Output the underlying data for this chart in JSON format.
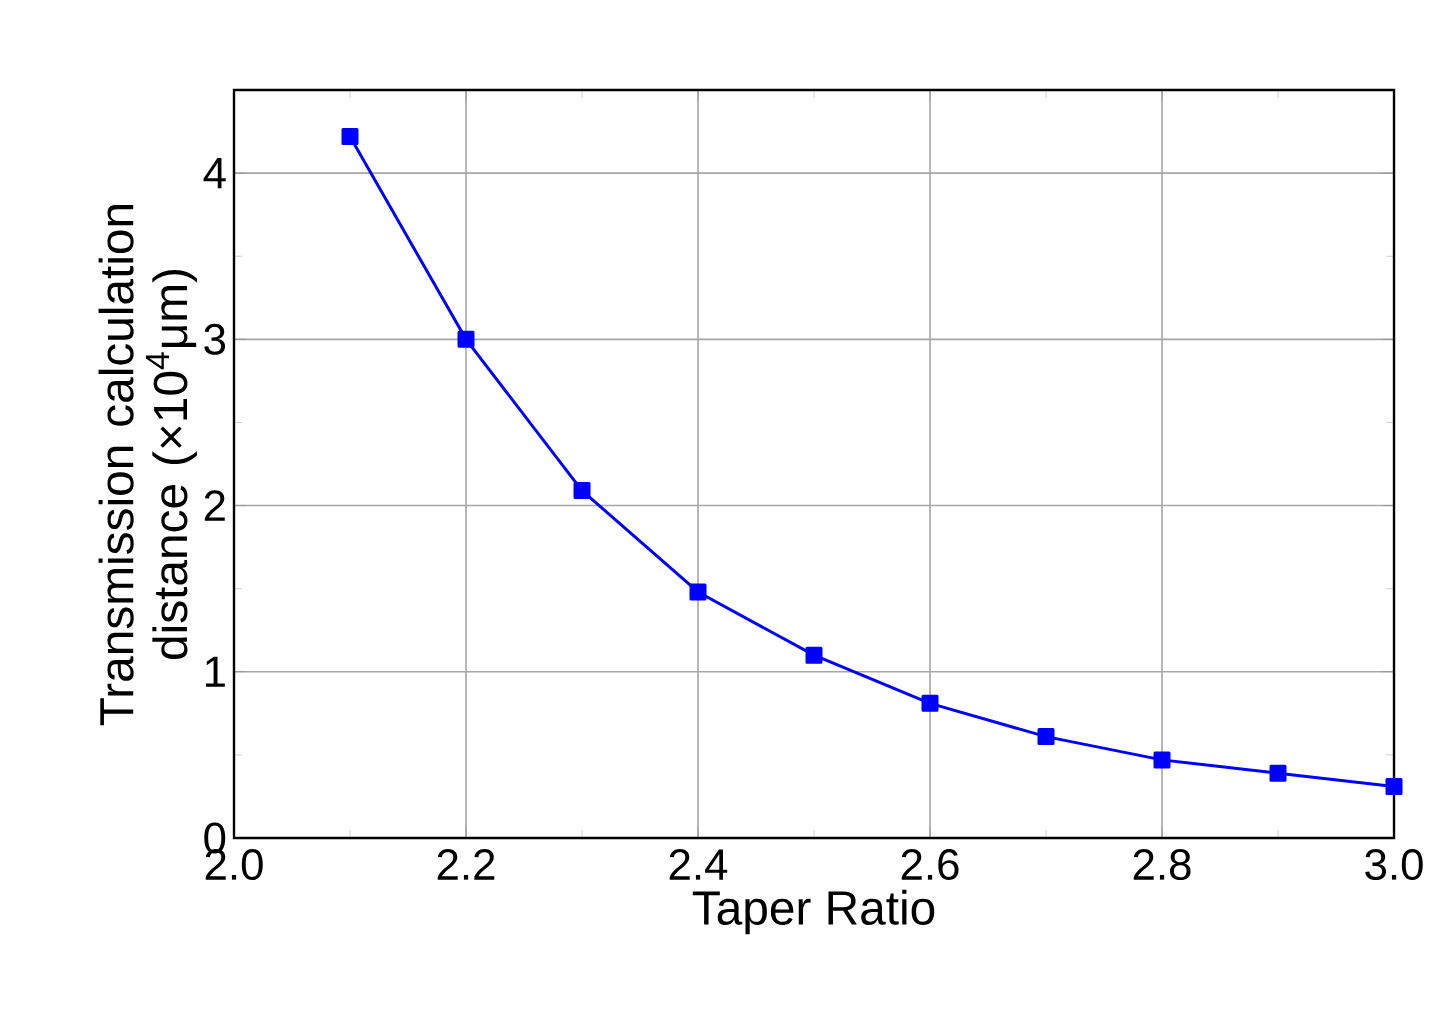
{
  "chart_data": {
    "type": "line",
    "xlabel": "Taper Ratio",
    "ylabel": "Transmission calculation distance (×10$^{4}$μm)",
    "x": [
      2.1,
      2.2,
      2.3,
      2.4,
      2.5,
      2.6,
      2.7,
      2.8,
      2.9,
      3.0
    ],
    "series": [
      {
        "color": "#0000ff",
        "values": [
          4.22,
          3.0,
          2.09,
          1.48,
          1.1,
          0.81,
          0.61,
          0.47,
          0.39,
          0.31
        ]
      }
    ],
    "xlim": [
      2.0,
      3.0
    ],
    "xticks": [
      {
        "value": 2.0,
        "label": "2.0"
      },
      {
        "value": 2.2,
        "label": "2.2"
      },
      {
        "value": 2.4,
        "label": "2.4"
      },
      {
        "value": 2.6,
        "label": "2.6"
      },
      {
        "value": 2.8,
        "label": "2.8"
      },
      {
        "value": 3.0,
        "label": "3.0"
      }
    ],
    "ylim": [
      0,
      4.5
    ],
    "yticks": [
      0,
      1,
      2,
      3,
      4
    ],
    "grid": true,
    "marker": "square",
    "line_style": "solid"
  }
}
